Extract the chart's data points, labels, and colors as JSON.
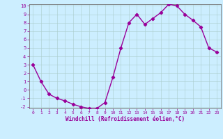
{
  "x": [
    0,
    1,
    2,
    3,
    4,
    5,
    6,
    7,
    8,
    9,
    10,
    11,
    12,
    13,
    14,
    15,
    16,
    17,
    18,
    19,
    20,
    21,
    22,
    23
  ],
  "y": [
    3,
    1,
    -0.5,
    -1.0,
    -1.3,
    -1.7,
    -2.0,
    -2.2,
    -2.2,
    -1.5,
    1.5,
    5.0,
    8.0,
    9.0,
    7.8,
    8.5,
    9.2,
    10.2,
    10.0,
    9.0,
    8.3,
    7.5,
    5.0,
    4.5
  ],
  "line_color": "#990099",
  "marker": "D",
  "marker_size": 2.2,
  "bg_color": "#cceeff",
  "grid_color": "#aacccc",
  "axis_color": "#990099",
  "xlabel": "Windchill (Refroidissement éolien,°C)",
  "ylim": [
    -2,
    10
  ],
  "xlim": [
    -0.5,
    23.5
  ],
  "yticks": [
    -2,
    -1,
    0,
    1,
    2,
    3,
    4,
    5,
    6,
    7,
    8,
    9,
    10
  ],
  "xticks": [
    0,
    1,
    2,
    3,
    4,
    5,
    6,
    7,
    8,
    9,
    10,
    11,
    12,
    13,
    14,
    15,
    16,
    17,
    18,
    19,
    20,
    21,
    22,
    23
  ]
}
